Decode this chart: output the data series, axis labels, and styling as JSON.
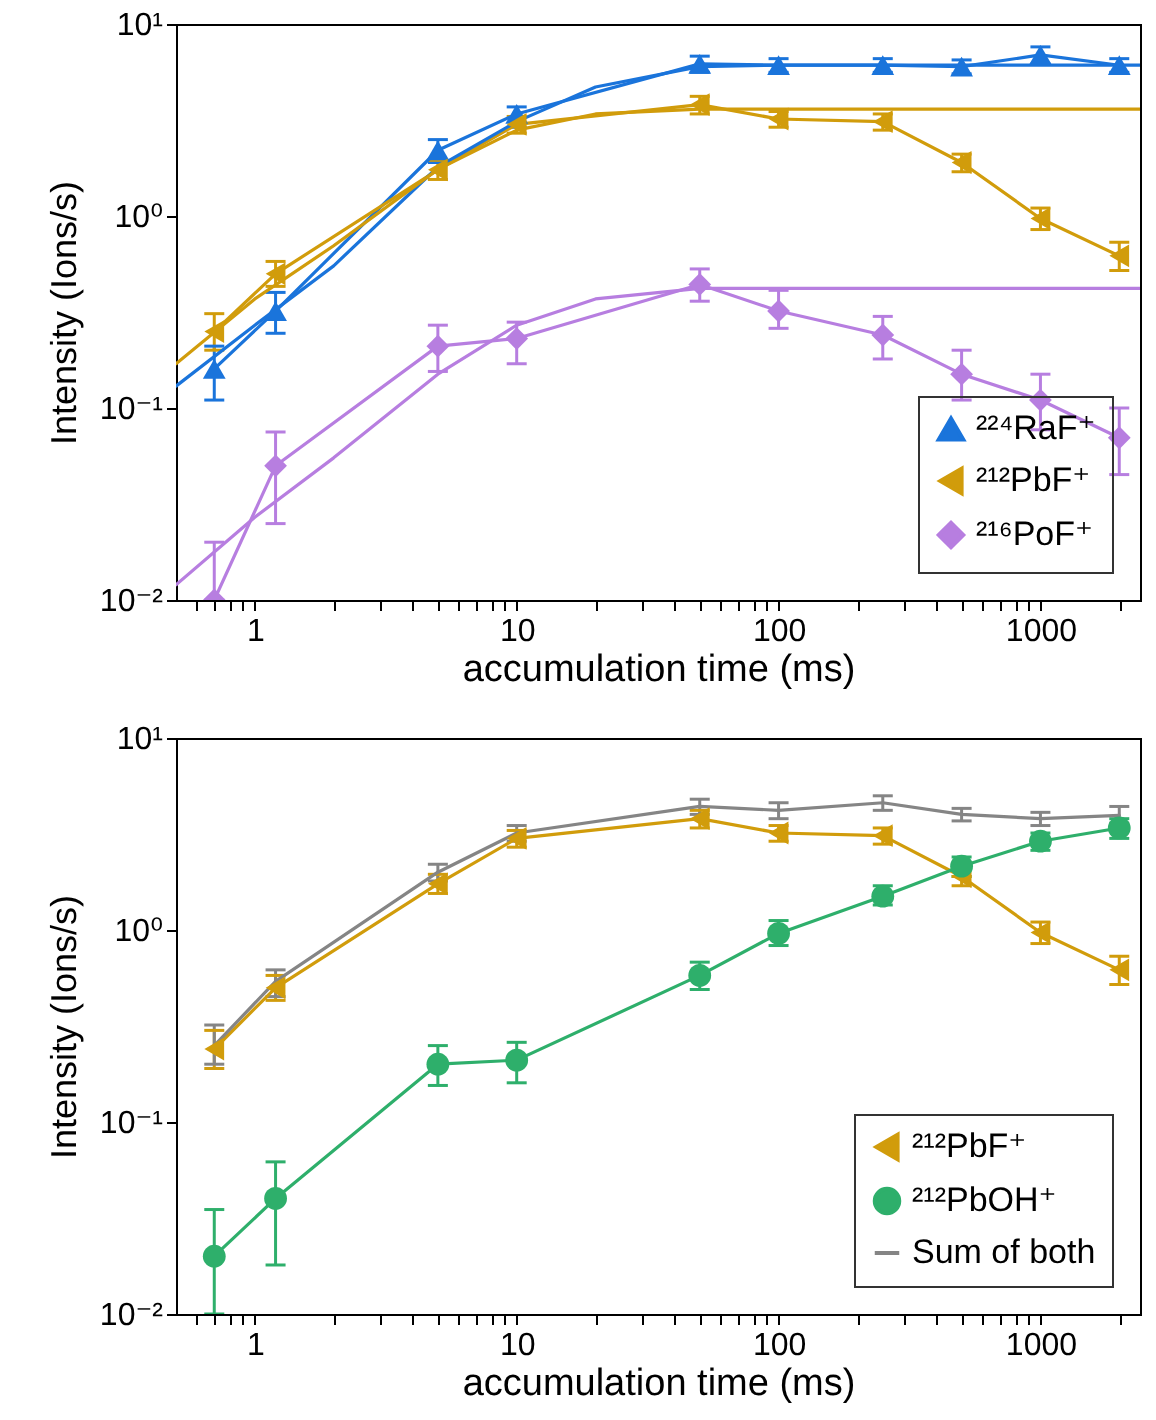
{
  "chart_data": [
    {
      "type": "line",
      "xlabel": "accumulation time (ms)",
      "ylabel": "Intensity (Ions/s)",
      "log": "xy",
      "legend": "bottom right",
      "grid": false,
      "x": [
        0.7,
        1.2,
        5,
        10,
        50,
        100,
        250,
        500,
        1000,
        2000
      ],
      "xlim": [
        0.5,
        2400
      ],
      "ylim": [
        0.01,
        10
      ],
      "xticks": [
        {
          "value": 0.6,
          "label": null
        },
        {
          "value": 0.7,
          "label": null
        },
        {
          "value": 0.8,
          "label": null
        },
        {
          "value": 0.9,
          "label": null
        },
        1,
        {
          "value": 2,
          "label": null
        },
        {
          "value": 3,
          "label": null
        },
        {
          "value": 4,
          "label": null
        },
        {
          "value": 5,
          "label": null
        },
        {
          "value": 6,
          "label": null
        },
        {
          "value": 7,
          "label": null
        },
        {
          "value": 8,
          "label": null
        },
        {
          "value": 9,
          "label": null
        },
        10,
        {
          "value": 20,
          "label": null
        },
        {
          "value": 30,
          "label": null
        },
        {
          "value": 40,
          "label": null
        },
        {
          "value": 50,
          "label": null
        },
        {
          "value": 60,
          "label": null
        },
        {
          "value": 70,
          "label": null
        },
        {
          "value": 80,
          "label": null
        },
        {
          "value": 90,
          "label": null
        },
        100,
        {
          "value": 200,
          "label": null
        },
        {
          "value": 300,
          "label": null
        },
        {
          "value": 400,
          "label": null
        },
        {
          "value": 500,
          "label": null
        },
        {
          "value": 600,
          "label": null
        },
        {
          "value": 700,
          "label": null
        },
        {
          "value": 800,
          "label": null
        },
        {
          "value": 900,
          "label": null
        },
        1000,
        {
          "value": 2000,
          "label": null
        }
      ],
      "yticks": [
        {
          "value": 0.01,
          "label": "10⁻²"
        },
        {
          "value": 0.1,
          "label": "10⁻¹"
        },
        {
          "value": 1,
          "label": "10⁰"
        },
        {
          "value": 10,
          "label": "10¹"
        }
      ],
      "series": [
        {
          "name": "²²⁴RaF⁺",
          "color": "#1a74db",
          "marker": "triangle",
          "values": [
            0.16,
            0.32,
            2.2,
            3.4,
            6.2,
            6.1,
            6.1,
            6.0,
            6.9,
            6.1
          ],
          "errors": [
            [
              0.11,
              0.21
            ],
            [
              0.245,
              0.4
            ],
            [
              1.9,
              2.5
            ],
            [
              2.9,
              3.7
            ],
            [
              5.6,
              6.8
            ],
            [
              5.6,
              6.6
            ],
            [
              5.6,
              6.6
            ],
            [
              5.5,
              6.5
            ],
            [
              6.2,
              7.6
            ],
            [
              5.6,
              6.6
            ]
          ]
        },
        {
          "name": "²¹²PbF⁺",
          "color": "#d19c0b",
          "marker": "triangle-left",
          "values": [
            0.25,
            0.5,
            1.74,
            3.0,
            3.8,
            3.2,
            3.1,
            1.9,
            0.97,
            0.62
          ],
          "errors": [
            [
              0.2,
              0.31
            ],
            [
              0.43,
              0.58
            ],
            [
              1.55,
              1.95
            ],
            [
              2.7,
              3.3
            ],
            [
              3.4,
              4.2
            ],
            [
              2.9,
              3.5
            ],
            [
              2.8,
              3.4
            ],
            [
              1.7,
              2.1
            ],
            [
              0.85,
              1.1
            ],
            [
              0.52,
              0.73
            ]
          ]
        },
        {
          "name": "²¹⁶PoF⁺",
          "color": "#b77ee0",
          "marker": "diamond",
          "values": [
            0.01,
            0.05,
            0.21,
            0.23,
            0.44,
            0.32,
            0.24,
            0.15,
            0.11,
            0.07
          ],
          "errors": [
            [
              0.01,
              0.02
            ],
            [
              0.025,
              0.075
            ],
            [
              0.155,
              0.27
            ],
            [
              0.17,
              0.28
            ],
            [
              0.36,
              0.53
            ],
            [
              0.26,
              0.41
            ],
            [
              0.18,
              0.3
            ],
            [
              0.11,
              0.2
            ],
            [
              0.077,
              0.15
            ],
            [
              0.045,
              0.1
            ]
          ]
        },
        {
          "type": "line",
          "color": "#1a74db",
          "marker": "none",
          "x": [
            0.5,
            1,
            2,
            5,
            10,
            20,
            50,
            100,
            2400
          ],
          "values": [
            0.13,
            0.27,
            0.55,
            1.8,
            3.1,
            4.7,
            6.0,
            6.1,
            6.1
          ]
        },
        {
          "type": "line",
          "color": "#d19c0b",
          "marker": "none",
          "x": [
            0.5,
            1,
            2,
            5,
            10,
            20,
            50,
            100,
            2400
          ],
          "values": [
            0.17,
            0.37,
            0.7,
            1.75,
            2.8,
            3.4,
            3.6,
            3.6,
            3.6
          ]
        },
        {
          "type": "line",
          "color": "#b77ee0",
          "marker": "none",
          "x": [
            0.5,
            1,
            2,
            5,
            10,
            20,
            50,
            100,
            2400
          ],
          "values": [
            0.012,
            0.027,
            0.055,
            0.15,
            0.27,
            0.37,
            0.42,
            0.42,
            0.42
          ]
        }
      ]
    },
    {
      "type": "line",
      "xlabel": "accumulation time (ms)",
      "ylabel": "Intensity (Ions/s)",
      "log": "xy",
      "legend": "bottom right",
      "grid": false,
      "x": [
        0.7,
        1.2,
        5,
        10,
        50,
        100,
        250,
        500,
        1000,
        2000
      ],
      "xlim": [
        0.5,
        2400
      ],
      "ylim": [
        0.01,
        10
      ],
      "xticks": [
        {
          "value": 0.6,
          "label": null
        },
        {
          "value": 0.7,
          "label": null
        },
        {
          "value": 0.8,
          "label": null
        },
        {
          "value": 0.9,
          "label": null
        },
        1,
        {
          "value": 2,
          "label": null
        },
        {
          "value": 3,
          "label": null
        },
        {
          "value": 4,
          "label": null
        },
        {
          "value": 5,
          "label": null
        },
        {
          "value": 6,
          "label": null
        },
        {
          "value": 7,
          "label": null
        },
        {
          "value": 8,
          "label": null
        },
        {
          "value": 9,
          "label": null
        },
        10,
        {
          "value": 20,
          "label": null
        },
        {
          "value": 30,
          "label": null
        },
        {
          "value": 40,
          "label": null
        },
        {
          "value": 50,
          "label": null
        },
        {
          "value": 60,
          "label": null
        },
        {
          "value": 70,
          "label": null
        },
        {
          "value": 80,
          "label": null
        },
        {
          "value": 90,
          "label": null
        },
        100,
        {
          "value": 200,
          "label": null
        },
        {
          "value": 300,
          "label": null
        },
        {
          "value": 400,
          "label": null
        },
        {
          "value": 500,
          "label": null
        },
        {
          "value": 600,
          "label": null
        },
        {
          "value": 700,
          "label": null
        },
        {
          "value": 800,
          "label": null
        },
        {
          "value": 900,
          "label": null
        },
        1000,
        {
          "value": 2000,
          "label": null
        }
      ],
      "yticks": [
        {
          "value": 0.01,
          "label": "10⁻²"
        },
        {
          "value": 0.1,
          "label": "10⁻¹"
        },
        {
          "value": 1,
          "label": "10⁰"
        },
        {
          "value": 10,
          "label": "10¹"
        }
      ],
      "series": [
        {
          "name": "²¹²PbF⁺",
          "color": "#d19c0b",
          "marker": "triangle-left",
          "values": [
            0.24,
            0.5,
            1.74,
            3.0,
            3.8,
            3.2,
            3.1,
            1.9,
            0.97,
            0.62
          ],
          "errors": [
            [
              0.19,
              0.3
            ],
            [
              0.43,
              0.58
            ],
            [
              1.55,
              1.95
            ],
            [
              2.7,
              3.3
            ],
            [
              3.4,
              4.2
            ],
            [
              2.9,
              3.5
            ],
            [
              2.8,
              3.4
            ],
            [
              1.7,
              1.9
            ],
            [
              0.85,
              1.1
            ],
            [
              0.52,
              0.73
            ]
          ]
        },
        {
          "name": "²¹²PbOH⁺",
          "color": "#2eaf6b",
          "marker": "circle",
          "values": [
            0.02,
            0.04,
            0.2,
            0.21,
            0.58,
            0.96,
            1.5,
            2.15,
            2.9,
            3.4
          ],
          "errors": [
            [
              0.01,
              0.035
            ],
            [
              0.018,
              0.062
            ],
            [
              0.155,
              0.25
            ],
            [
              0.16,
              0.26
            ],
            [
              0.49,
              0.68
            ],
            [
              0.83,
              1.12
            ],
            [
              1.35,
              1.7
            ],
            [
              1.9,
              2.4
            ],
            [
              2.6,
              3.2
            ],
            [
              3.0,
              3.8
            ]
          ]
        },
        {
          "name": "Sum of both",
          "color": "#858585",
          "marker": "none",
          "values": [
            0.25,
            0.54,
            2.0,
            3.2,
            4.4,
            4.2,
            4.6,
            4.0,
            3.8,
            3.95
          ],
          "errors": [
            [
              0.2,
              0.32
            ],
            [
              0.45,
              0.62
            ],
            [
              1.8,
              2.2
            ],
            [
              2.9,
              3.5
            ],
            [
              4.0,
              4.8
            ],
            [
              3.8,
              4.6
            ],
            [
              4.2,
              5.0
            ],
            [
              3.7,
              4.3
            ],
            [
              3.5,
              4.1
            ],
            [
              3.6,
              4.4
            ]
          ]
        }
      ]
    }
  ]
}
